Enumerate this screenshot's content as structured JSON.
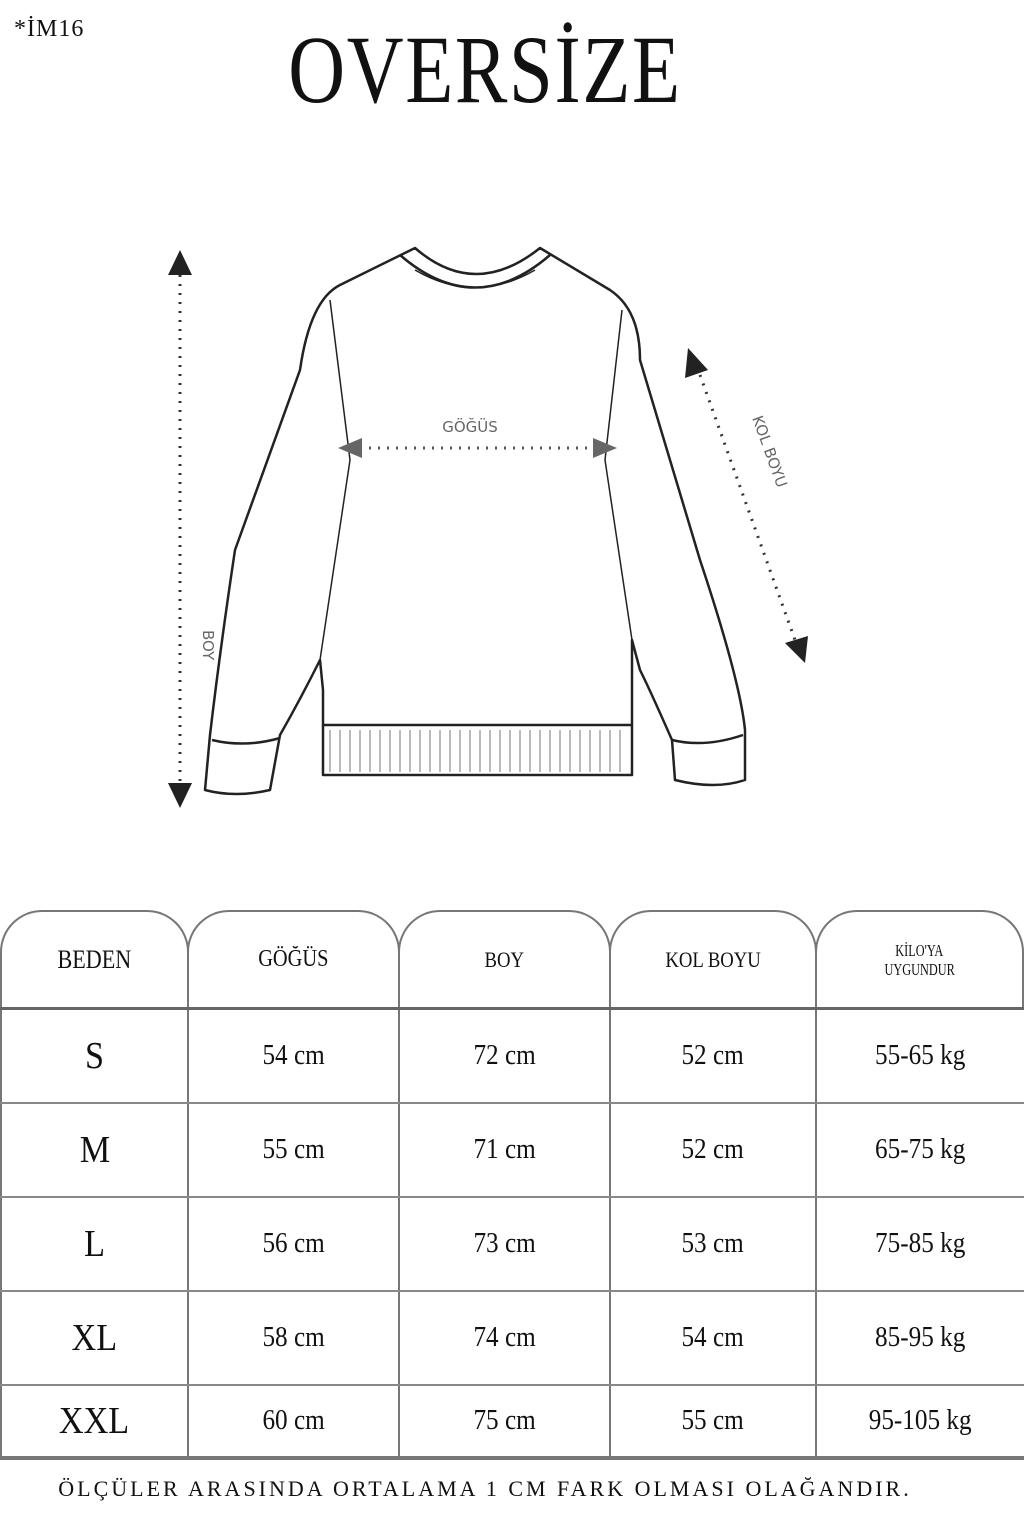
{
  "product_code": "*İM16",
  "title": "OVERSİZE",
  "diagram": {
    "chest_label": "GÖĞÜS",
    "length_label": "BOY",
    "sleeve_label": "KOL BOYU"
  },
  "table": {
    "headers": [
      "BEDEN",
      "GÖĞÜS",
      "BOY",
      "KOL BOYU",
      "KİLO'YA UYGUNDUR"
    ],
    "weight_header_lines": [
      "KİLO'YA",
      "UYGUNDUR"
    ],
    "rows": [
      [
        "S",
        "54 cm",
        "72 cm",
        "52  cm",
        "55-65 kg"
      ],
      [
        "M",
        "55 cm",
        "71 cm",
        "52 cm",
        "65-75 kg"
      ],
      [
        "L",
        "56 cm",
        "73 cm",
        "53 cm",
        "75-85 kg"
      ],
      [
        "XL",
        "58 cm",
        "74 cm",
        "54 cm",
        "85-95 kg"
      ],
      [
        "XXL",
        "60 cm",
        "75 cm",
        "55 cm",
        "95-105 kg"
      ]
    ]
  },
  "footer_note": "ÖLÇÜLER ARASINDA ORTALAMA 1 CM FARK OLMASI OLAĞANDIR."
}
